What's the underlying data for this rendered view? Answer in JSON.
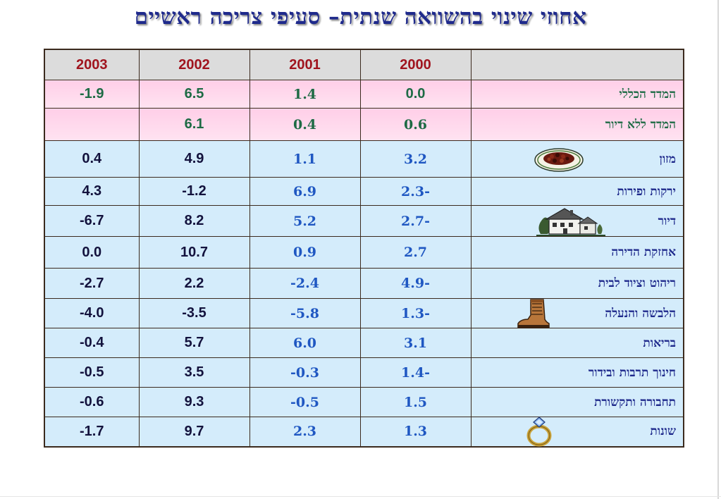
{
  "title": "אחוזי שינוי בהשוואה שנתית– סעיפי צריכה ראשיים",
  "header": {
    "c2000": "2000",
    "c2001": "2001",
    "c2002": "2002",
    "c2003": "2003"
  },
  "rows": [
    {
      "label": "המדד הכללי",
      "v2000": "0.0",
      "v2001": "1.4",
      "v2002": "6.5",
      "v2003": "-1.9"
    },
    {
      "label": "המדד ללא דיור",
      "v2000": "0.6",
      "v2001": "0.4",
      "v2002": "6.1",
      "v2003": ""
    },
    {
      "label": "מזון",
      "v2000": "3.2",
      "v2001": "1.1",
      "v2002": "4.9",
      "v2003": "0.4",
      "icon": "food-plate-icon"
    },
    {
      "label": "ירקות ופירות",
      "v2000": "2.3-",
      "v2001": "6.9",
      "v2002": "-1.2",
      "v2003": "4.3"
    },
    {
      "label": "דיור",
      "v2000": "2.7-",
      "v2001": "5.2",
      "v2002": "8.2",
      "v2003": "-6.7",
      "icon": "house-icon"
    },
    {
      "label": "אחזקת הדירה",
      "v2000": "2.7",
      "v2001": "0.9",
      "v2002": "10.7",
      "v2003": "0.0"
    },
    {
      "label": "ריהוט וציוד לבית",
      "v2000": "4.9-",
      "v2001": "-2.4",
      "v2002": "2.2",
      "v2003": "-2.7"
    },
    {
      "label": "הלבשה והנעלה",
      "v2000": "1.3-",
      "v2001": "-5.8",
      "v2002": "-3.5",
      "v2003": "-4.0",
      "icon": "boot-icon"
    },
    {
      "label": "בריאות",
      "v2000": "3.1",
      "v2001": "6.0",
      "v2002": "5.7",
      "v2003": "-0.4"
    },
    {
      "label": "חינוך תרבות ובידור",
      "v2000": "1.4-",
      "v2001": "-0.3",
      "v2002": "3.5",
      "v2003": "-0.5"
    },
    {
      "label": "תחבורה ותקשורת",
      "v2000": "1.5",
      "v2001": "-0.5",
      "v2002": "9.3",
      "v2003": "-0.6"
    },
    {
      "label": "שונות",
      "v2000": "1.3",
      "v2001": "2.3",
      "v2002": "9.7",
      "v2003": "-1.7",
      "icon": "ring-icon"
    }
  ]
}
